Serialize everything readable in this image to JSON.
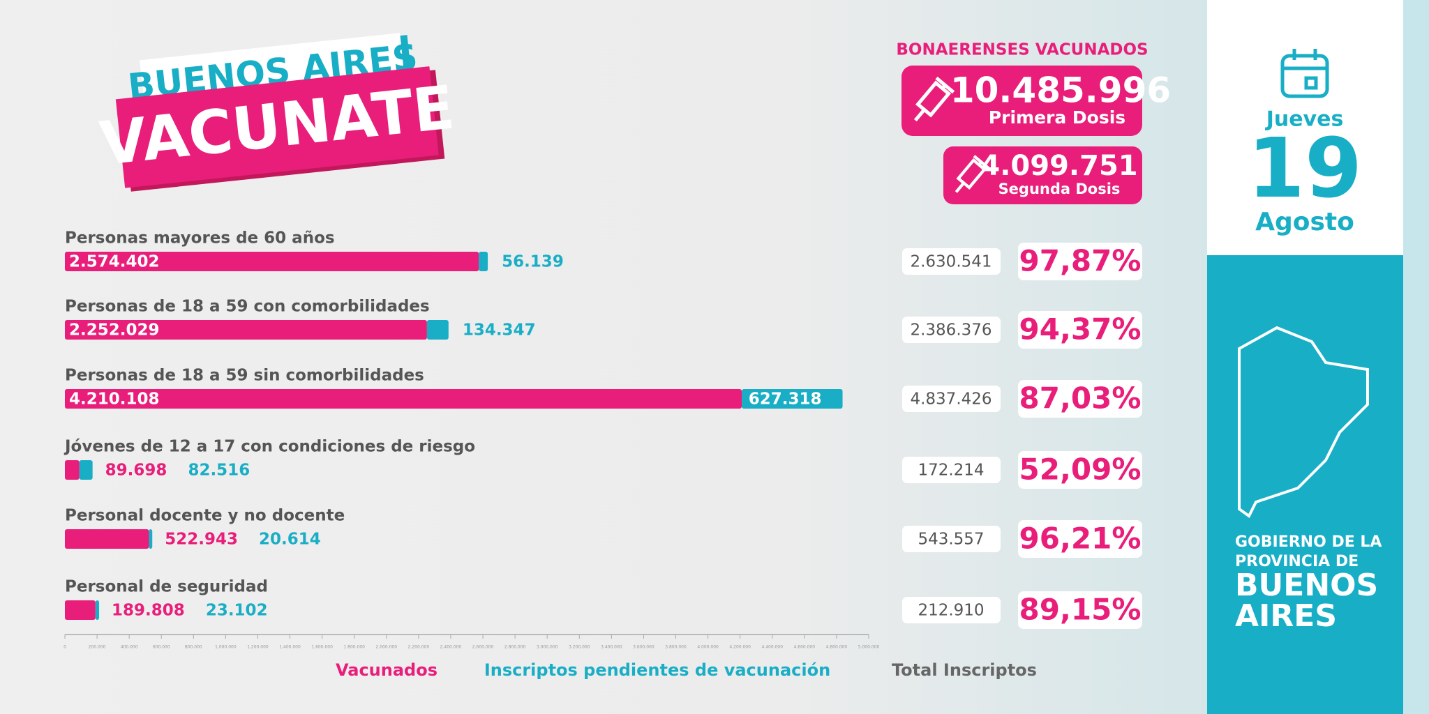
{
  "logo": {
    "line1": "BUENOS AIRES",
    "line2": "VACUNATE"
  },
  "header": {
    "title": "BONAERENSES VACUNADOS",
    "first_dose": {
      "value": "10.485.996",
      "label": "Primera Dosis"
    },
    "second_dose": {
      "value": "4.099.751",
      "label": "Segunda Dosis"
    }
  },
  "date": {
    "weekday": "Jueves",
    "day": "19",
    "month": "Agosto"
  },
  "government": {
    "line1": "GOBIERNO DE LA",
    "line2": "PROVINCIA DE",
    "line3": "BUENOS",
    "line4": "AIRES"
  },
  "summary": {
    "total_label": "Total Inscriptos",
    "rows": [
      {
        "total": "2.630.541",
        "percent": "97,87%"
      },
      {
        "total": "2.386.376",
        "percent": "94,37%"
      },
      {
        "total": "4.837.426",
        "percent": "87,03%"
      },
      {
        "total": "172.214",
        "percent": "52,09%"
      },
      {
        "total": "543.557",
        "percent": "96,21%"
      },
      {
        "total": "212.910",
        "percent": "89,15%"
      }
    ]
  },
  "chart_data": {
    "type": "stacked-barh",
    "categories": [
      "Personas mayores de 60 años",
      "Personas de 18 a 59 con comorbilidades",
      "Personas de 18 a 59 sin comorbilidades",
      "Jóvenes de 12 a 17 con condiciones de riesgo",
      "Personal docente y no docente",
      "Personal de seguridad"
    ],
    "series": [
      {
        "name": "Vacunados",
        "color": "#e91e7a",
        "values": [
          2574402,
          2252029,
          4210108,
          89698,
          522943,
          189808
        ],
        "value_labels": [
          "2.574.402",
          "2.252.029",
          "4.210.108",
          "89.698",
          "522.943",
          "189.808"
        ]
      },
      {
        "name": "Inscriptos pendientes de vacunación",
        "color": "#1aaec6",
        "values": [
          56139,
          134347,
          627318,
          82516,
          20614,
          23102
        ],
        "value_labels": [
          "56.139",
          "134.347",
          "627.318",
          "82.516",
          "20.614",
          "23.102"
        ]
      }
    ],
    "xlim": [
      0,
      5000000
    ],
    "xticks": [
      0,
      {
        "value": 200000,
        "label": "200.000"
      },
      {
        "value": 400000,
        "label": "400.000"
      },
      {
        "value": 600000,
        "label": "600.000"
      },
      {
        "value": 800000,
        "label": "800.000"
      },
      {
        "value": 1000000,
        "label": "1.000.000"
      },
      {
        "value": 1200000,
        "label": "1.200.000"
      },
      {
        "value": 1400000,
        "label": "1.400.000"
      },
      {
        "value": 1600000,
        "label": "1.600.000"
      },
      {
        "value": 1800000,
        "label": "1.800.000"
      },
      {
        "value": 2000000,
        "label": "2.000.000"
      },
      {
        "value": 2200000,
        "label": "2.200.000"
      },
      {
        "value": 2400000,
        "label": "2.400.000"
      },
      {
        "value": 2600000,
        "label": "2.600.000"
      },
      {
        "value": 2800000,
        "label": "2.800.000"
      },
      {
        "value": 3000000,
        "label": "3.000.000"
      },
      {
        "value": 3200000,
        "label": "3.200.000"
      },
      {
        "value": 3400000,
        "label": "3.400.000"
      },
      {
        "value": 3600000,
        "label": "3.600.000"
      },
      {
        "value": 3800000,
        "label": "3.800.000"
      },
      {
        "value": 4000000,
        "label": "4.000.000"
      },
      {
        "value": 4200000,
        "label": "4.200.000"
      },
      {
        "value": 4400000,
        "label": "4.400.000"
      },
      {
        "value": 4600000,
        "label": "4.600.000"
      },
      {
        "value": 4800000,
        "label": "4.800.000"
      },
      {
        "value": 5000000,
        "label": "5.000.000"
      }
    ]
  }
}
